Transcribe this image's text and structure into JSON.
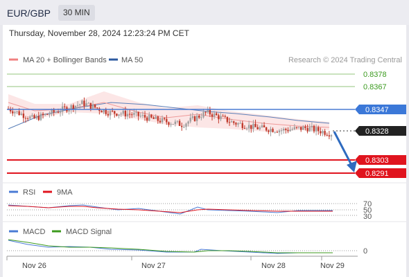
{
  "header": {
    "pair": "EUR/GBP",
    "timeframe": "30 MIN",
    "timestamp": "Thursday, November 28, 2024 12:23:24 PM CET"
  },
  "price_panel": {
    "legend": [
      {
        "label": "MA 20 + Bollinger Bands",
        "color": "#f08080"
      },
      {
        "label": "MA 50",
        "color": "#2c5aa0"
      }
    ],
    "credit": "Research © 2024 Trading Central",
    "levels": [
      {
        "label": "0.8378",
        "kind": "resistance",
        "color": "#93c47d"
      },
      {
        "label": "0.8367",
        "kind": "resistance",
        "color": "#93c47d"
      },
      {
        "label": "0.8347",
        "kind": "pivot",
        "color": "#4a7bd4"
      },
      {
        "label": "0.8328",
        "kind": "last",
        "color": "#222222"
      },
      {
        "label": "0.8303",
        "kind": "support",
        "color": "#e0141e"
      },
      {
        "label": "0.8291",
        "kind": "support",
        "color": "#e0141e"
      }
    ],
    "forecast_arrow": {
      "direction": "down",
      "color": "#2f6bbf"
    }
  },
  "rsi_panel": {
    "legend": [
      {
        "label": "RSI",
        "color": "#4a7bd4"
      },
      {
        "label": "9MA",
        "color": "#e0141e"
      }
    ],
    "ticks": [
      "70",
      "50",
      "30"
    ]
  },
  "macd_panel": {
    "legend": [
      {
        "label": "MACD",
        "color": "#4a7bd4"
      },
      {
        "label": "MACD Signal",
        "color": "#3c9a1e"
      }
    ],
    "ticks": [
      "0"
    ]
  },
  "x_axis": {
    "labels": [
      "Nov 26",
      "Nov 27",
      "Nov 28",
      "Nov 29"
    ]
  },
  "chart_data": {
    "type": "line",
    "title": "EUR/GBP 30 MIN",
    "x": [
      "Nov 26",
      "Nov 27",
      "Nov 28",
      "Nov 29"
    ],
    "series": [
      {
        "name": "EUR/GBP",
        "approx_path": [
          0.835,
          0.8341,
          0.8348,
          0.8355,
          0.8347,
          0.8345,
          0.834,
          0.8336,
          0.8347,
          0.8338,
          0.8333,
          0.8331,
          0.8333,
          0.8328
        ]
      },
      {
        "name": "MA 50",
        "approx_path": [
          0.8339,
          0.8346,
          0.835,
          0.8347,
          0.8344,
          0.834,
          0.8337
        ]
      }
    ],
    "horizontal_levels": [
      0.8378,
      0.8367,
      0.8347,
      0.8328,
      0.8303,
      0.8291
    ],
    "ylim": [
      0.8288,
      0.8385
    ],
    "rsi_levels": [
      70,
      50,
      30
    ],
    "macd_zero": 0
  }
}
